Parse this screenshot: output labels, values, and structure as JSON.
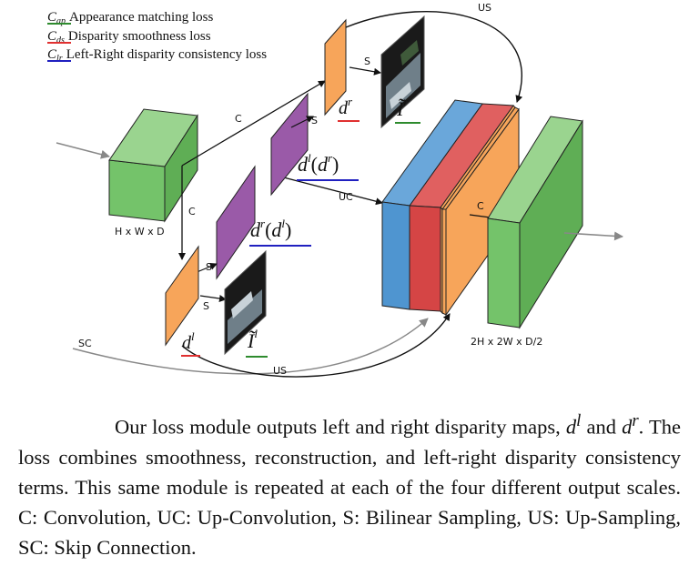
{
  "legend": [
    {
      "symbol": "C",
      "sub": "ap",
      "text": "Appearance matching loss",
      "color": "#2e8b2e"
    },
    {
      "symbol": "C",
      "sub": "ds",
      "text": "Disparity smoothness loss",
      "color": "#e03030"
    },
    {
      "symbol": "C",
      "sub": "lr",
      "text": "Left-Right disparity consistency loss",
      "color": "#2020c0"
    }
  ],
  "labels": {
    "us_top": "US",
    "us_bottom": "US",
    "sc": "SC",
    "c_top": "C",
    "c_left": "C",
    "c_right": "C",
    "uc": "UC",
    "s1": "S",
    "s2": "S",
    "s3": "S",
    "s4": "S",
    "input_dims": "H x W x D",
    "output_dims": "2H x 2W x D/2"
  },
  "math": {
    "dr_base": "d",
    "dr_sup": "r",
    "ir_base": "Ĩ",
    "ir_sup": "r",
    "dl_dr": {
      "a": "d",
      "a_sup": "l",
      "b": "d",
      "b_sup": "r"
    },
    "dr_dl": {
      "a": "d",
      "a_sup": "r",
      "b": "d",
      "b_sup": "l"
    },
    "dl_base": "d",
    "dl_sup": "l",
    "il_base": "Ĩ",
    "il_sup": "l"
  },
  "colors": {
    "green": "#74c36a",
    "orange": "#f7a55a",
    "purple": "#9a5aa8",
    "blue": "#4f95d0",
    "red": "#d54545"
  },
  "caption": {
    "p1": "Our loss module outputs left and right disparity maps, ",
    "m1": "d",
    "m1_sup": "l",
    "p2": " and ",
    "m2": "d",
    "m2_sup": "r",
    "p3": ". The loss combines smoothness, reconstruction, and left-right disparity consistency terms. This same module is repeated at each of the four different output scales. C: Convolution, UC: Up-Convolution, S: Bilinear Sampling, US: Up-Sampling, SC: Skip Connection."
  }
}
